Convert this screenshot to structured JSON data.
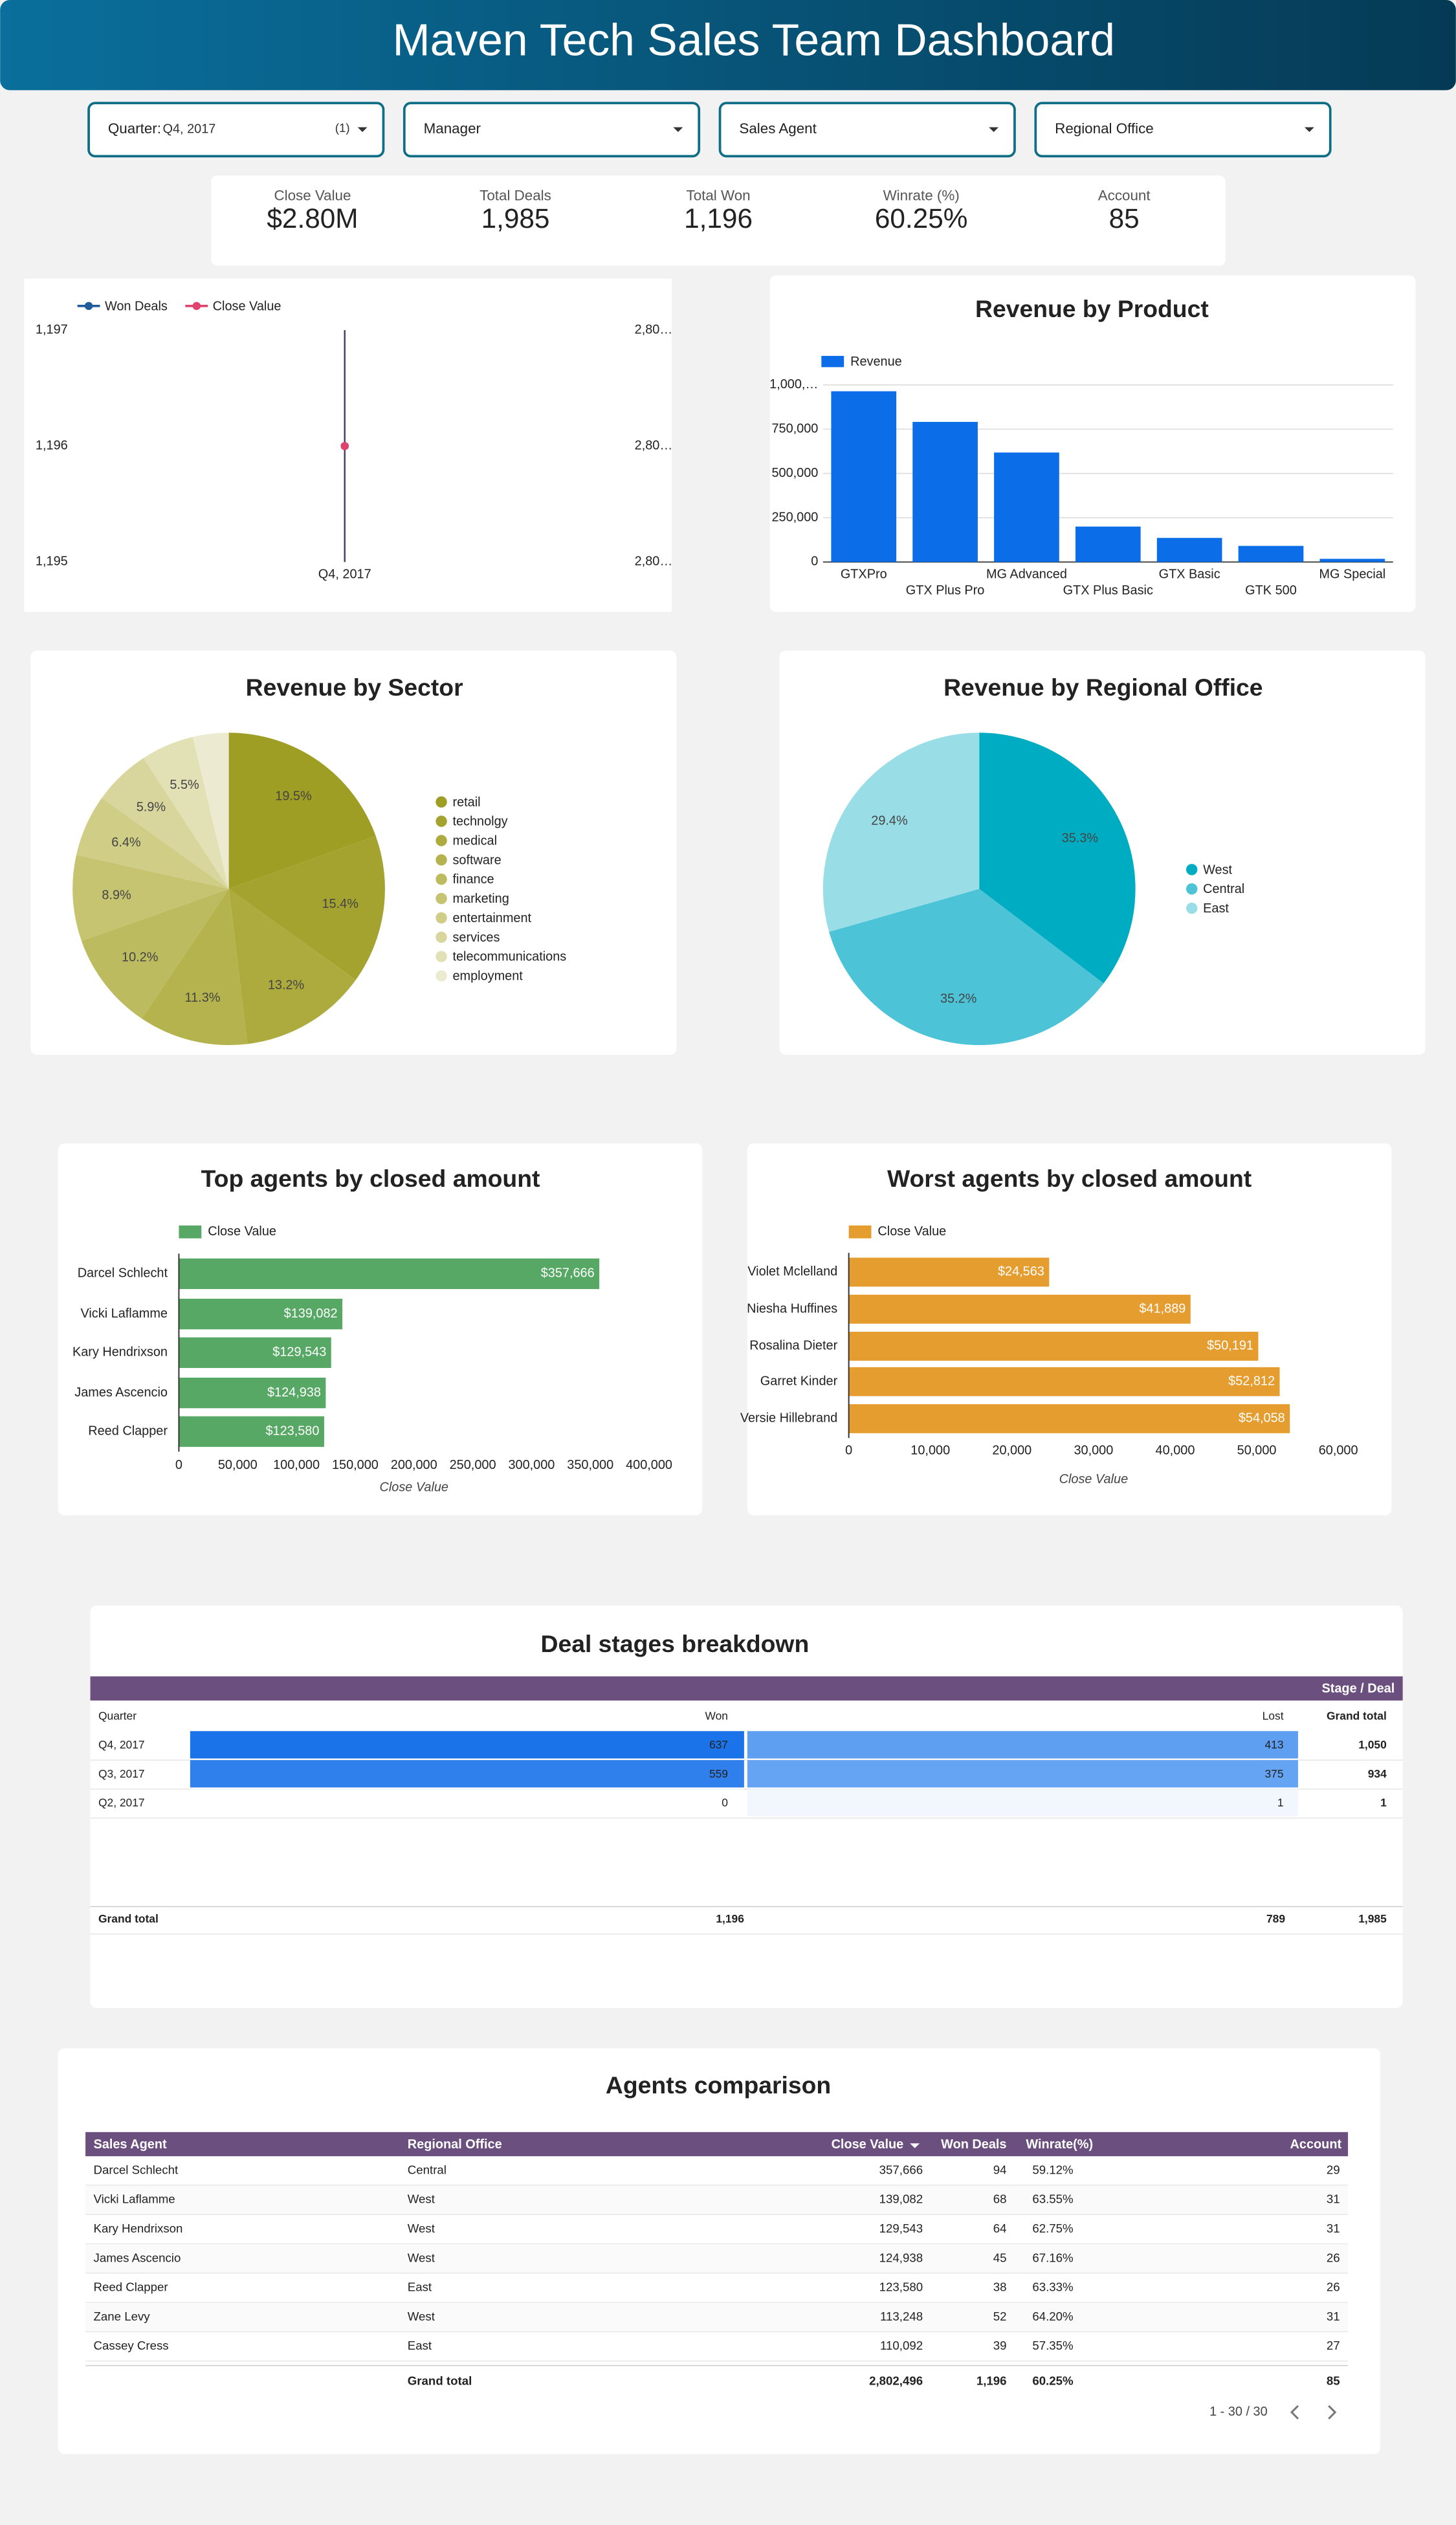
{
  "header": {
    "title": "Maven Tech Sales Team Dashboard"
  },
  "filters": [
    {
      "label": "Quarter:",
      "value": "Q4, 2017",
      "count": "(1)"
    },
    {
      "label": "Manager"
    },
    {
      "label": "Sales Agent"
    },
    {
      "label": "Regional Office"
    }
  ],
  "scorecards": [
    {
      "label": "Close Value",
      "value": "$2.80M"
    },
    {
      "label": "Total Deals",
      "value": "1,985"
    },
    {
      "label": "Total Won",
      "value": "1,196"
    },
    {
      "label": "Winrate (%)",
      "value": "60.25%"
    },
    {
      "label": "Account",
      "value": "85"
    }
  ],
  "chart_data": [
    {
      "type": "line",
      "categories": [
        "Q4, 2017"
      ],
      "series": [
        {
          "name": "Won Deals",
          "color": "#1f5c99",
          "values": [
            1196
          ]
        },
        {
          "name": "Close Value",
          "color": "#e0436b",
          "values": [
            2802496
          ],
          "axis": "y2"
        }
      ],
      "ylim": [
        1195,
        1197
      ],
      "yticks": [
        {
          "value": 1197,
          "label": "1,197"
        },
        {
          "value": 1196,
          "label": "1,196"
        },
        {
          "value": 1195,
          "label": "1,195"
        }
      ],
      "y2lim": [
        2802495,
        2802497
      ],
      "y2ticks": [
        {
          "value": 2802497,
          "label": "2,80…"
        },
        {
          "value": 2802496,
          "label": "2,80…"
        },
        {
          "value": 2802495,
          "label": "2,80…"
        }
      ]
    },
    {
      "type": "bar",
      "title": "Revenue by Product",
      "legend": "Revenue",
      "color": "#0b6ee8",
      "categories": [
        "GTXPro",
        "GTX Plus Pro",
        "MG Advanced",
        "GTX Plus Basic",
        "GTX Basic",
        "GTK 500",
        "MG Special"
      ],
      "values": [
        964000,
        791000,
        618000,
        200000,
        136000,
        91000,
        18000
      ],
      "ylim": [
        0,
        1000000
      ],
      "yticks": [
        0,
        {
          "value": 250000,
          "label": "250,000"
        },
        {
          "value": 500000,
          "label": "500,000"
        },
        {
          "value": 750000,
          "label": "750,000"
        },
        {
          "value": 1000000,
          "label": "1,000,…"
        }
      ],
      "grid": true
    },
    {
      "type": "pie",
      "title": "Revenue by Sector",
      "categories": [
        "retail",
        "technolgy",
        "medical",
        "software",
        "finance",
        "marketing",
        "entertainment",
        "services",
        "telecommunications",
        "employment"
      ],
      "values": [
        19.5,
        15.4,
        13.2,
        11.3,
        10.2,
        8.9,
        6.4,
        5.9,
        5.5,
        3.7
      ],
      "value_labels": [
        "19.5%",
        "15.4%",
        "13.2%",
        "11.3%",
        "10.2%",
        "8.9%",
        "6.4%",
        "5.9%",
        "5.5%",
        null
      ],
      "colors": [
        "#9e9d24",
        "#a5a32f",
        "#adab3d",
        "#b5b34d",
        "#bdbb5f",
        "#c6c471",
        "#cfcd86",
        "#d8d69c",
        "#e2e1b5",
        "#ecebd2"
      ]
    },
    {
      "type": "pie",
      "title": "Revenue by Regional Office",
      "categories": [
        "West",
        "Central",
        "East"
      ],
      "values": [
        35.3,
        35.2,
        29.4
      ],
      "value_labels": [
        "35.3%",
        "35.2%",
        "29.4%"
      ],
      "colors": [
        "#00acc1",
        "#4cc3d6",
        "#99dde6"
      ]
    },
    {
      "type": "hbar",
      "title": "Top agents by closed amount",
      "legend": "Close Value",
      "x_label": "Close Value",
      "color": "#57a864",
      "categories": [
        "Darcel Schlecht",
        "Vicki Laflamme",
        "Kary Hendrixson",
        "James Ascencio",
        "Reed Clapper"
      ],
      "values": [
        357666,
        139082,
        129543,
        124938,
        123580
      ],
      "value_labels": [
        "$357,666",
        "$139,082",
        "$129,543",
        "$124,938",
        "$123,580"
      ],
      "xlim": [
        0,
        400000
      ],
      "xticks": [
        0,
        {
          "value": 50000,
          "label": "50,000"
        },
        {
          "value": 100000,
          "label": "100,000"
        },
        {
          "value": 150000,
          "label": "150,000"
        },
        {
          "value": 200000,
          "label": "200,000"
        },
        {
          "value": 250000,
          "label": "250,000"
        },
        {
          "value": 300000,
          "label": "300,000"
        },
        {
          "value": 350000,
          "label": "350,000"
        },
        {
          "value": 400000,
          "label": "400,000"
        }
      ]
    },
    {
      "type": "hbar",
      "title": "Worst agents by closed amount",
      "legend": "Close Value",
      "x_label": "Close Value",
      "color": "#e69d2f",
      "categories": [
        "Violet Mclelland",
        "Niesha Huffines",
        "Rosalina Dieter",
        "Garret Kinder",
        "Versie Hillebrand"
      ],
      "values": [
        24563,
        41889,
        50191,
        52812,
        54058
      ],
      "value_labels": [
        "$24,563",
        "$41,889",
        "$50,191",
        "$52,812",
        "$54,058"
      ],
      "xlim": [
        0,
        60000
      ],
      "xticks": [
        0,
        {
          "value": 10000,
          "label": "10,000"
        },
        {
          "value": 20000,
          "label": "20,000"
        },
        {
          "value": 30000,
          "label": "30,000"
        },
        {
          "value": 40000,
          "label": "40,000"
        },
        {
          "value": 50000,
          "label": "50,000"
        },
        {
          "value": 60000,
          "label": "60,000"
        }
      ]
    }
  ],
  "deal_stages": {
    "title": "Deal stages breakdown",
    "group_header": "Stage / Deal",
    "columns": [
      "Quarter",
      "Won",
      "Lost",
      "Grand total"
    ],
    "rows": [
      [
        "Q4, 2017",
        "637",
        "413",
        "1,050"
      ],
      [
        "Q3, 2017",
        "559",
        "375",
        "934"
      ],
      [
        "Q2, 2017",
        "0",
        "1",
        "1"
      ]
    ],
    "cell_colors": [
      [
        "#1a73e8",
        "#5e9ff2"
      ],
      [
        "#2f80ed",
        "#65a4f3"
      ],
      [
        "#ffffff",
        "#f2f7fe"
      ]
    ],
    "grand_total": [
      "Grand total",
      "1,196",
      "789",
      "1,985"
    ]
  },
  "agents_comparison": {
    "title": "Agents comparison",
    "columns": [
      "Sales Agent",
      "Regional Office",
      "Close Value",
      "Won Deals",
      "Winrate(%)",
      "Account"
    ],
    "rows": [
      [
        "Darcel Schlecht",
        "Central",
        "357,666",
        "94",
        "59.12%",
        "29"
      ],
      [
        "Vicki Laflamme",
        "West",
        "139,082",
        "68",
        "63.55%",
        "31"
      ],
      [
        "Kary Hendrixson",
        "West",
        "129,543",
        "64",
        "62.75%",
        "31"
      ],
      [
        "James Ascencio",
        "West",
        "124,938",
        "45",
        "67.16%",
        "26"
      ],
      [
        "Reed Clapper",
        "East",
        "123,580",
        "38",
        "63.33%",
        "26"
      ],
      [
        "Zane Levy",
        "West",
        "113,248",
        "52",
        "64.20%",
        "31"
      ],
      [
        "Cassey Cress",
        "East",
        "110,092",
        "39",
        "57.35%",
        "27"
      ]
    ],
    "grand_total": {
      "label": "Grand total",
      "close_value": "2,802,496",
      "won_deals": "1,196",
      "winrate": "60.25%",
      "account": "85"
    },
    "pagination": "1 - 30 / 30"
  }
}
